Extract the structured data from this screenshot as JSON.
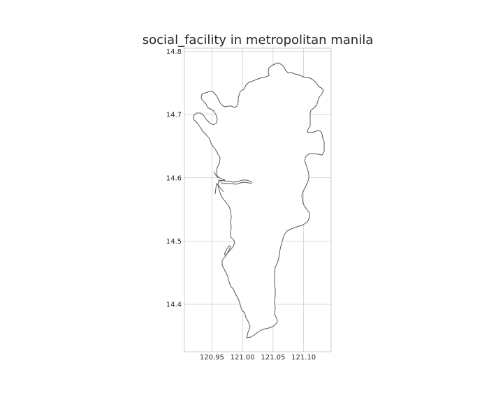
{
  "chart_data": {
    "type": "map",
    "title": "social_facility in metropolitan manila",
    "xlabel": "",
    "ylabel": "",
    "xlim": [
      120.905,
      121.145
    ],
    "ylim": [
      14.325,
      14.805
    ],
    "x_ticks": [
      {
        "value": 120.95,
        "label": "120.95"
      },
      {
        "value": 121.0,
        "label": "121.00"
      },
      {
        "value": 121.05,
        "label": "121.05"
      },
      {
        "value": 121.1,
        "label": "121.10"
      }
    ],
    "y_ticks": [
      {
        "value": 14.8,
        "label": "14.8"
      },
      {
        "value": 14.7,
        "label": "14.7"
      },
      {
        "value": 14.6,
        "label": "14.6"
      },
      {
        "value": 14.5,
        "label": "14.5"
      },
      {
        "value": 14.4,
        "label": "14.4"
      }
    ],
    "grid": true,
    "layers": [
      {
        "name": "metropolitan manila boundary",
        "geometry": "polygon",
        "edge_color": "#555555",
        "face_color": "#ffffff"
      }
    ],
    "points": []
  }
}
